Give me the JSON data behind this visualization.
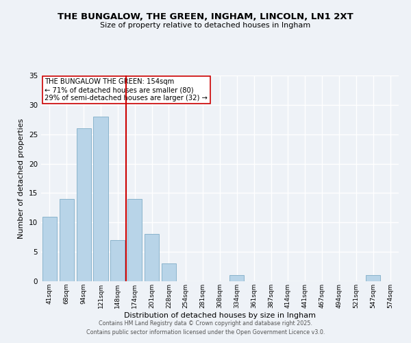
{
  "title": "THE BUNGALOW, THE GREEN, INGHAM, LINCOLN, LN1 2XT",
  "subtitle": "Size of property relative to detached houses in Ingham",
  "xlabel": "Distribution of detached houses by size in Ingham",
  "ylabel": "Number of detached properties",
  "bar_labels": [
    "41sqm",
    "68sqm",
    "94sqm",
    "121sqm",
    "148sqm",
    "174sqm",
    "201sqm",
    "228sqm",
    "254sqm",
    "281sqm",
    "308sqm",
    "334sqm",
    "361sqm",
    "387sqm",
    "414sqm",
    "441sqm",
    "467sqm",
    "494sqm",
    "521sqm",
    "547sqm",
    "574sqm"
  ],
  "bar_values": [
    11,
    14,
    26,
    28,
    7,
    14,
    8,
    3,
    0,
    0,
    0,
    1,
    0,
    0,
    0,
    0,
    0,
    0,
    0,
    1,
    0
  ],
  "bar_color": "#b8d4e8",
  "bar_edge_color": "#8ab4cc",
  "vline_x": 4.5,
  "vline_color": "#cc0000",
  "annotation_line1": "THE BUNGALOW THE GREEN: 154sqm",
  "annotation_line2": "← 71% of detached houses are smaller (80)",
  "annotation_line3": "29% of semi-detached houses are larger (32) →",
  "annotation_box_color": "#ffffff",
  "annotation_box_edge": "#cc0000",
  "ylim": [
    0,
    35
  ],
  "yticks": [
    0,
    5,
    10,
    15,
    20,
    25,
    30,
    35
  ],
  "footer_line1": "Contains HM Land Registry data © Crown copyright and database right 2025.",
  "footer_line2": "Contains public sector information licensed under the Open Government Licence v3.0.",
  "background_color": "#eef2f7",
  "grid_color": "#ffffff"
}
